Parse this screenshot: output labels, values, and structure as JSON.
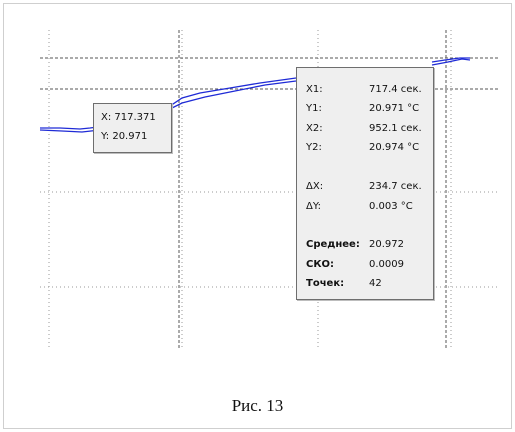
{
  "small_tooltip": {
    "x_line": "X: 717.371",
    "y_line": "Y: 20.971"
  },
  "stats_tooltip": {
    "rows": [
      {
        "label": "X1:",
        "value": "717.4 сек."
      },
      {
        "label": "Y1:",
        "value": "20.971 °C"
      },
      {
        "label": "X2:",
        "value": "952.1 сек."
      },
      {
        "label": "Y2:",
        "value": "20.974 °C"
      },
      {
        "label": "ΔX:",
        "value": "234.7 сек."
      },
      {
        "label": "ΔY:",
        "value": "0.003 °C"
      },
      {
        "label": "Среднее:",
        "value": "20.972"
      },
      {
        "label": "СКО:",
        "value": "0.0009"
      },
      {
        "label": "Точек:",
        "value": "42"
      }
    ]
  },
  "caption": "Рис. 13",
  "colors": {
    "curve": "#1f2bd6",
    "grid": "#9a9a9a",
    "cursor_line": "#555555",
    "tooltip_bg": "#efefef"
  }
}
